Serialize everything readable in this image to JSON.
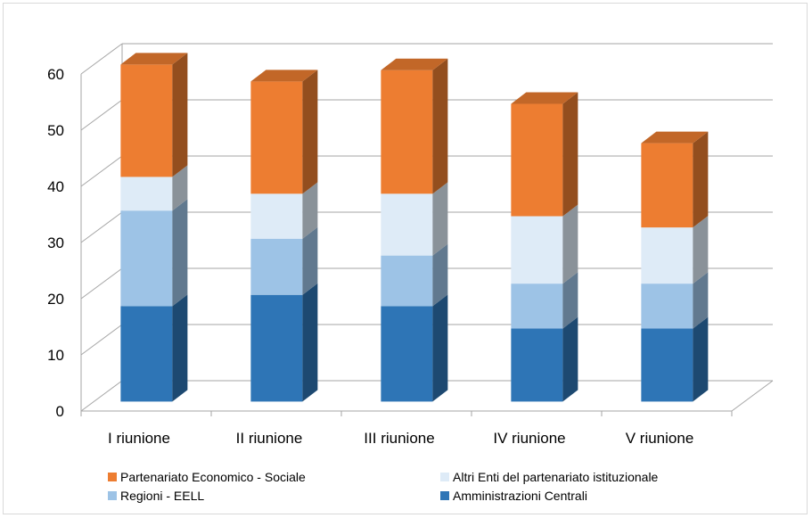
{
  "chart_data": {
    "type": "bar",
    "stacked": true,
    "three_d": true,
    "categories": [
      "I riunione",
      "II riunione",
      "III riunione",
      "IV riunione",
      "V riunione"
    ],
    "series": [
      {
        "name": "Amministrazioni Centrali",
        "values": [
          17,
          19,
          17,
          13,
          13
        ],
        "color": "#2e75b6"
      },
      {
        "name": "Regioni - EELL",
        "values": [
          17,
          10,
          9,
          8,
          8
        ],
        "color": "#9dc3e6"
      },
      {
        "name": "Altri Enti del partenariato istituzionale",
        "values": [
          6,
          8,
          11,
          12,
          10
        ],
        "color": "#deebf7"
      },
      {
        "name": "Partenariato Economico - Sociale",
        "values": [
          20,
          20,
          22,
          20,
          15
        ],
        "color": "#ed7d31"
      }
    ],
    "yticks": [
      "0",
      "10",
      "20",
      "30",
      "40",
      "50",
      "60"
    ],
    "ylim": [
      0,
      60
    ],
    "grid": true,
    "legend_position": "bottom"
  }
}
